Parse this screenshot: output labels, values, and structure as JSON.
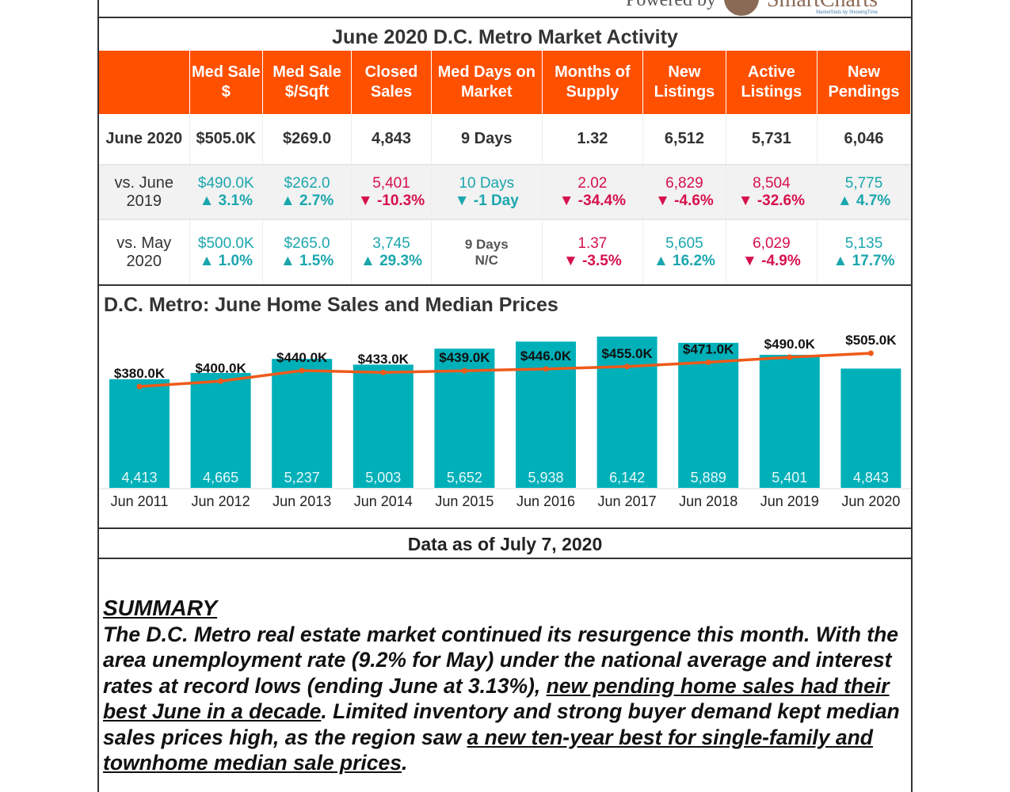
{
  "logo": {
    "powered_by": "Powered by",
    "brand": "SmartCharts",
    "tagline": "MarketStats by ShowingTime"
  },
  "title": "June 2020 D.C. Metro Market Activity",
  "table": {
    "headers": [
      "",
      "Med Sale $",
      "Med Sale $/Sqft",
      "Closed Sales",
      "Med Days on Market",
      "Months of Supply",
      "New Listings",
      "Active Listings",
      "New Pendings"
    ],
    "current": {
      "label": "June 2020",
      "values": [
        "$505.0K",
        "$269.0",
        "4,843",
        "9 Days",
        "1.32",
        "6,512",
        "5,731",
        "6,046"
      ]
    },
    "vs_last_year": {
      "label": "vs. June 2019",
      "values": [
        "$490.0K",
        "$262.0",
        "5,401",
        "10 Days",
        "2.02",
        "6,829",
        "8,504",
        "5,775"
      ],
      "changes": [
        "▲ 3.1%",
        "▲ 2.7%",
        "▼ -10.3%",
        "▼ -1 Day",
        "▼ -34.4%",
        "▼ -4.6%",
        "▼ -32.6%",
        "▲ 4.7%"
      ],
      "status": [
        "up",
        "up",
        "dn",
        "up",
        "dn",
        "dn",
        "dn",
        "up"
      ]
    },
    "vs_last_month": {
      "label": "vs. May 2020",
      "values": [
        "$500.0K",
        "$265.0",
        "3,745",
        "9 Days",
        "1.37",
        "5,605",
        "6,029",
        "5,135"
      ],
      "changes": [
        "▲ 1.0%",
        "▲ 1.5%",
        "▲ 29.3%",
        "N/C",
        "▼ -3.5%",
        "▲ 16.2%",
        "▼ -4.9%",
        "▲ 17.7%"
      ],
      "status": [
        "up",
        "up",
        "up",
        "nc",
        "dn",
        "up",
        "dn",
        "up"
      ]
    }
  },
  "colors": {
    "header": "#ff5000",
    "positive": "#1ba6ae",
    "negative": "#d6114c",
    "bar": "#00b0b9",
    "line": "#ef5a1a"
  },
  "chart_data": {
    "type": "bar+line",
    "title": "D.C. Metro: June Home Sales and Median Prices",
    "categories": [
      "Jun 2011",
      "Jun 2012",
      "Jun 2013",
      "Jun 2014",
      "Jun 2015",
      "Jun 2016",
      "Jun 2017",
      "Jun 2018",
      "Jun 2019",
      "Jun 2020"
    ],
    "series": [
      {
        "type": "bar",
        "values": [
          4413,
          4665,
          5237,
          5003,
          5652,
          5938,
          6142,
          5889,
          5401,
          4843
        ],
        "labels": [
          "4,413",
          "4,665",
          "5,237",
          "5,003",
          "5,652",
          "5,938",
          "6,142",
          "5,889",
          "5,401",
          "4,843"
        ]
      },
      {
        "type": "line",
        "values": [
          380,
          400,
          440,
          433,
          439,
          446,
          455,
          471,
          490,
          505
        ],
        "labels": [
          "$380.0K",
          "$400.0K",
          "$440.0K",
          "$433.0K",
          "$439.0K",
          "$446.0K",
          "$455.0K",
          "$471.0K",
          "$490.0K",
          "$505.0K"
        ]
      }
    ],
    "grid": false
  },
  "as_of": "Data as of July 7, 2020",
  "summary": {
    "heading": "SUMMARY",
    "p1": "The D.C. Metro real estate market continued its resurgence this month. With the area unemployment rate (9.2% for May) under the national average and interest rates at record lows (ending June at 3.13%), ",
    "u1": "new pending home sales had their best June in a decade",
    "p2": ". Limited inventory and strong buyer demand kept median sales prices high, as the region saw ",
    "u2": "a new ten-year best for single-family and townhome median sale prices",
    "p3": "."
  }
}
